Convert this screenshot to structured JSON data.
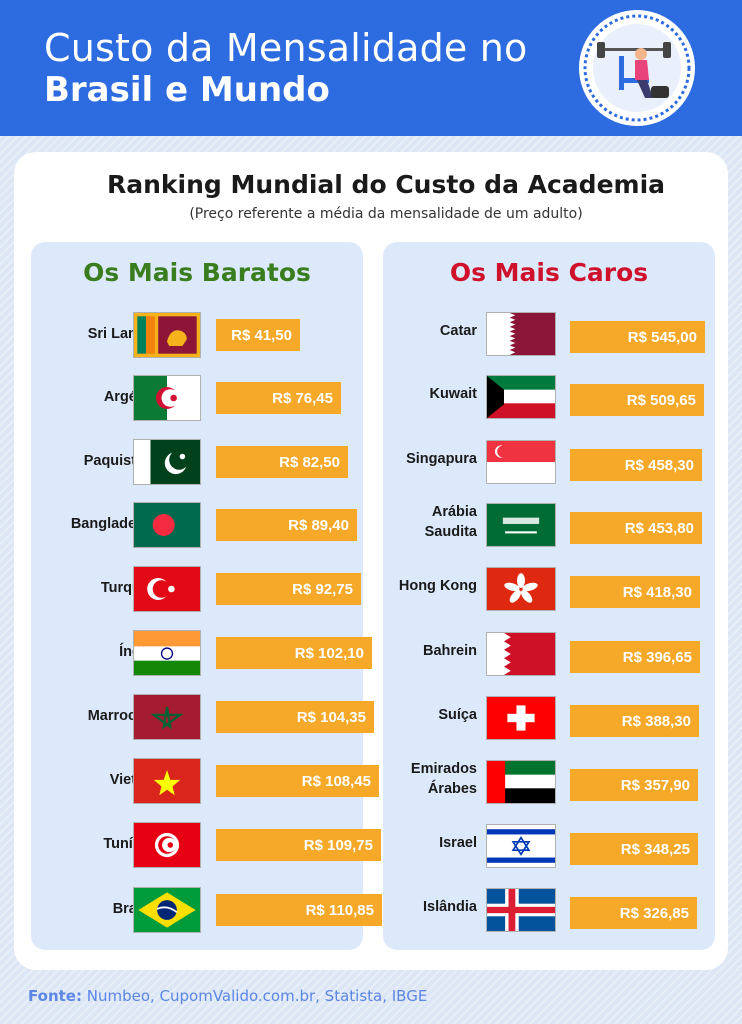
{
  "header": {
    "title_line1": "Custo da Mensalidade no",
    "title_line2": "Brasil e Mundo"
  },
  "colors": {
    "header_bg": "#2d6be0",
    "bar": "#f6a829",
    "cheap_title": "#3a7d1e",
    "expensive_title": "#d0112b",
    "source": "#5b86e6"
  },
  "chart_data": {
    "type": "bar",
    "title": "Ranking Mundial do Custo da Academia",
    "subtitle": "(Preço referente a média da mensalidade de um adulto)",
    "panels": [
      {
        "title": "Os Mais Baratos",
        "categories": [
          "Sri Lanka",
          "Argélia",
          "Paquistão",
          "Bangladesh",
          "Turquia",
          "Índia",
          "Marrocos",
          "Vietnã",
          "Tunísia",
          "Brasil"
        ],
        "values": [
          41.5,
          76.45,
          82.5,
          89.4,
          92.75,
          102.1,
          104.35,
          108.45,
          109.75,
          110.85
        ],
        "labels": [
          "R$ 41,50",
          "R$ 76,45",
          "R$ 82,50",
          "R$ 89,40",
          "R$ 92,75",
          "R$ 102,10",
          "R$ 104,35",
          "R$ 108,45",
          "R$ 109,75",
          "R$ 110,85"
        ],
        "flags": [
          "sri-lanka-flag",
          "algeria-flag",
          "pakistan-flag",
          "bangladesh-flag",
          "turkey-flag",
          "india-flag",
          "morocco-flag",
          "vietnam-flag",
          "tunisia-flag",
          "brazil-flag"
        ]
      },
      {
        "title": "Os Mais Caros",
        "categories": [
          "Catar",
          "Kuwait",
          "Singapura",
          "Arábia Saudita",
          "Hong Kong",
          "Bahrein",
          "Suíça",
          "Emirados Árabes",
          "Israel",
          "Islândia"
        ],
        "values": [
          545.0,
          509.65,
          458.3,
          453.8,
          418.3,
          396.65,
          388.3,
          357.9,
          348.25,
          326.85
        ],
        "labels": [
          "R$ 545,00",
          "R$ 509,65",
          "R$ 458,30",
          "R$ 453,80",
          "R$ 418,30",
          "R$ 396,65",
          "R$ 388,30",
          "R$ 357,90",
          "R$ 348,25",
          "R$ 326,85"
        ],
        "flags": [
          "qatar-flag",
          "kuwait-flag",
          "singapore-flag",
          "saudi-arabia-flag",
          "hong-kong-flag",
          "bahrain-flag",
          "switzerland-flag",
          "uae-flag",
          "israel-flag",
          "iceland-flag"
        ]
      }
    ]
  },
  "source": {
    "label": "Fonte:",
    "text": " Numbeo, CupomValido.com.br, Statista, IBGE"
  }
}
